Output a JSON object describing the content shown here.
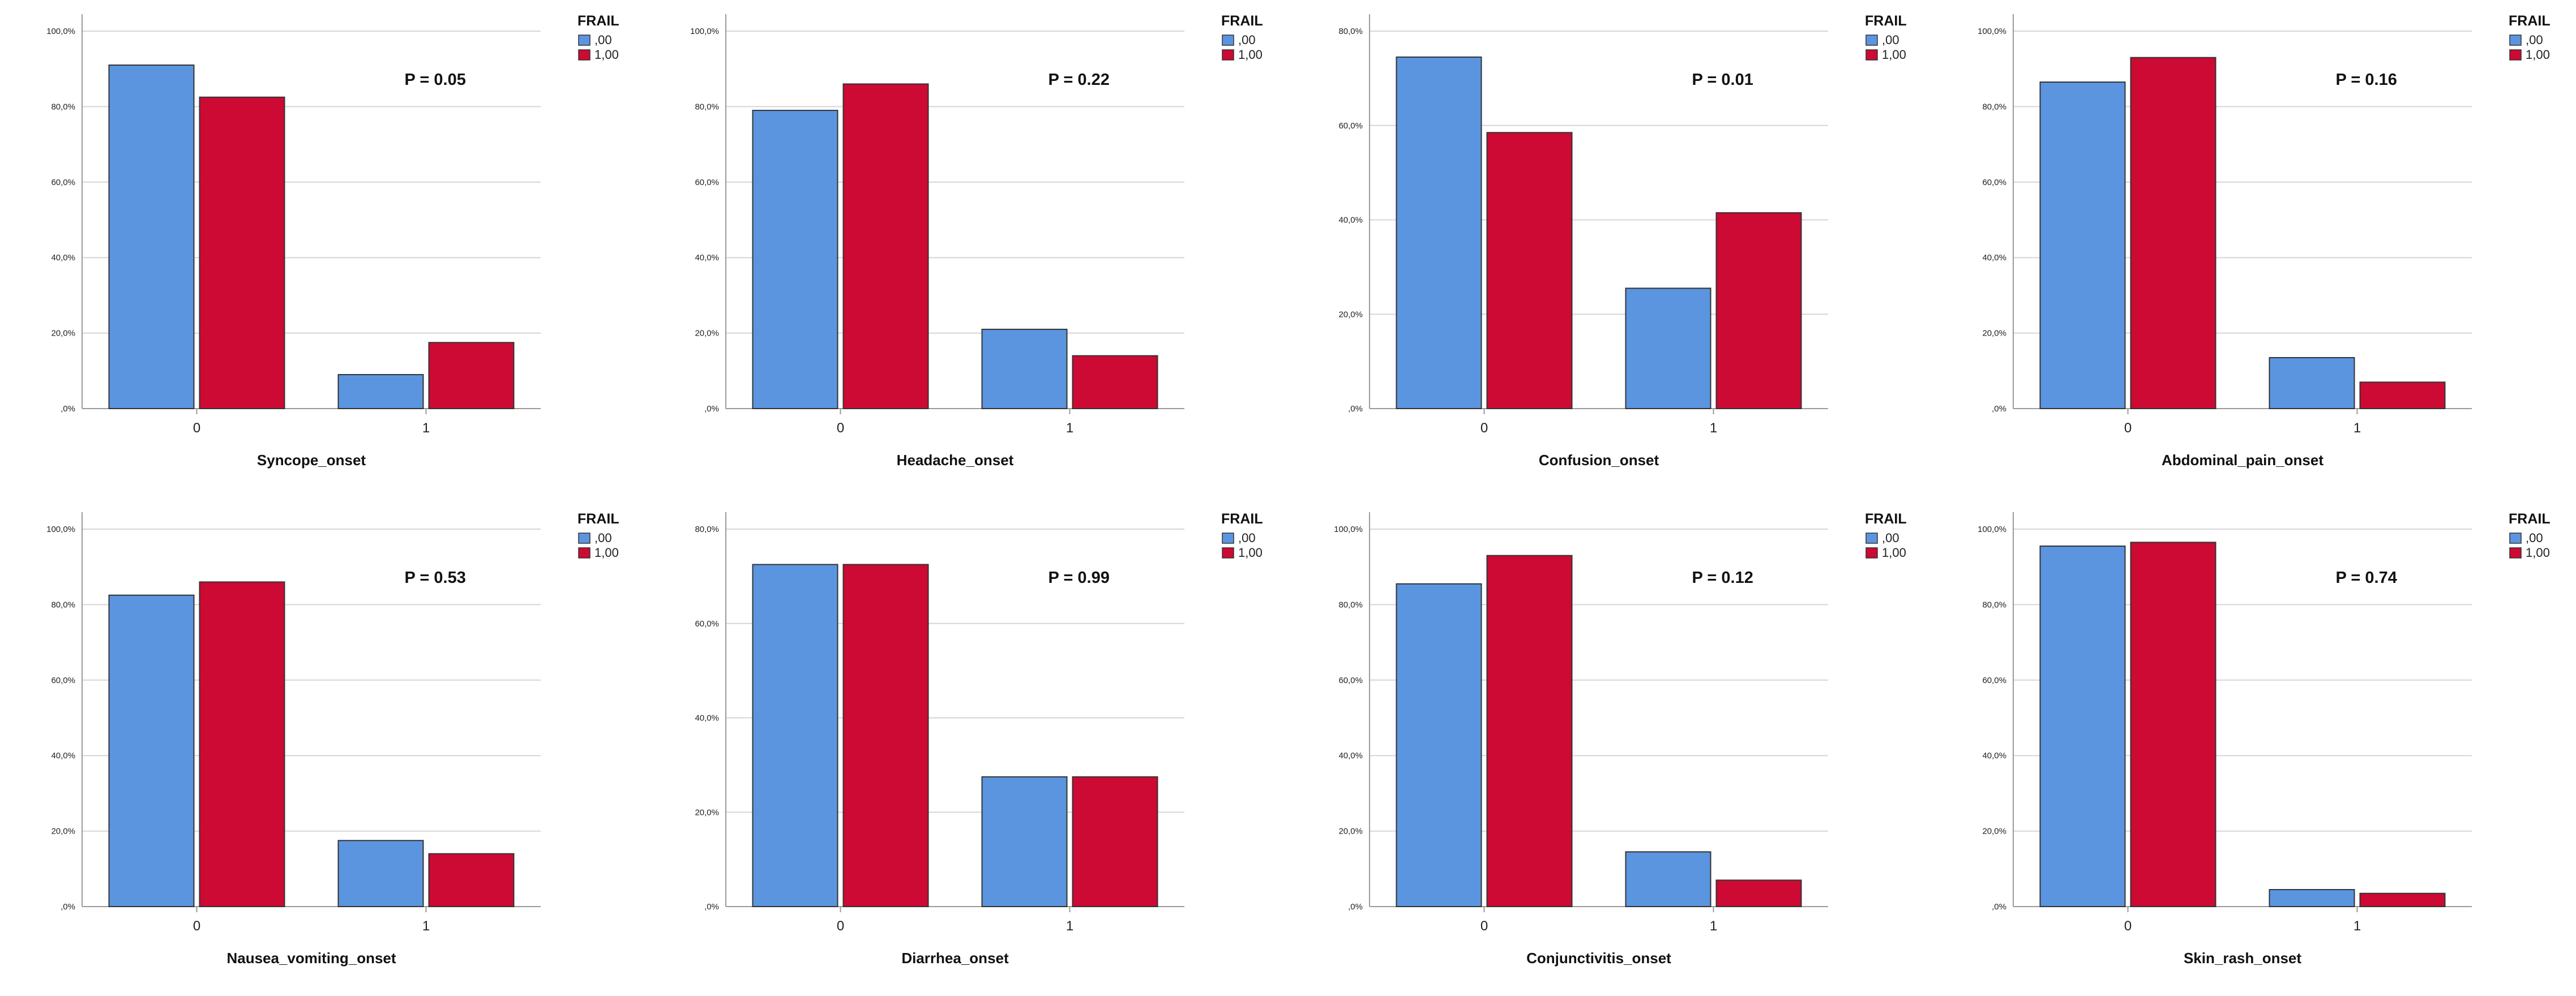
{
  "chart_data": [
    {
      "type": "bar",
      "xlabel": "Syncope_onset",
      "ylabel": "",
      "categories": [
        "0",
        "1"
      ],
      "yticks": [
        ",0%",
        "20,0%",
        "40,0%",
        "60,0%",
        "80,0%",
        "100,0%"
      ],
      "ylim": [
        0,
        100
      ],
      "annotation": "P = 0.05",
      "legend_title": "FRAIL",
      "legend_position": "top-right",
      "colors": [
        "#5b95e0",
        "#cc0a33"
      ],
      "series": [
        {
          "name": ",00",
          "values": [
            91.0,
            9.0
          ]
        },
        {
          "name": "1,00",
          "values": [
            82.5,
            17.5
          ]
        }
      ]
    },
    {
      "type": "bar",
      "xlabel": "Headache_onset",
      "ylabel": "",
      "categories": [
        "0",
        "1"
      ],
      "yticks": [
        ",0%",
        "20,0%",
        "40,0%",
        "60,0%",
        "80,0%",
        "100,0%"
      ],
      "ylim": [
        0,
        100
      ],
      "annotation": "P = 0.22",
      "legend_title": "FRAIL",
      "legend_position": "top-right",
      "colors": [
        "#5b95e0",
        "#cc0a33"
      ],
      "series": [
        {
          "name": ",00",
          "values": [
            79.0,
            21.0
          ]
        },
        {
          "name": "1,00",
          "values": [
            86.0,
            14.0
          ]
        }
      ]
    },
    {
      "type": "bar",
      "xlabel": "Confusion_onset",
      "ylabel": "",
      "categories": [
        "0",
        "1"
      ],
      "yticks": [
        ",0%",
        "20,0%",
        "40,0%",
        "60,0%",
        "80,0%"
      ],
      "ylim": [
        0,
        80
      ],
      "annotation": "P = 0.01",
      "legend_title": "FRAIL",
      "legend_position": "top-right",
      "colors": [
        "#5b95e0",
        "#cc0a33"
      ],
      "series": [
        {
          "name": ",00",
          "values": [
            74.5,
            25.5
          ]
        },
        {
          "name": "1,00",
          "values": [
            58.5,
            41.5
          ]
        }
      ]
    },
    {
      "type": "bar",
      "xlabel": "Abdominal_pain_onset",
      "ylabel": "",
      "categories": [
        "0",
        "1"
      ],
      "yticks": [
        ",0%",
        "20,0%",
        "40,0%",
        "60,0%",
        "80,0%",
        "100,0%"
      ],
      "ylim": [
        0,
        100
      ],
      "annotation": "P = 0.16",
      "legend_title": "FRAIL",
      "legend_position": "top-right",
      "colors": [
        "#5b95e0",
        "#cc0a33"
      ],
      "series": [
        {
          "name": ",00",
          "values": [
            86.5,
            13.5
          ]
        },
        {
          "name": "1,00",
          "values": [
            93.0,
            7.0
          ]
        }
      ]
    },
    {
      "type": "bar",
      "xlabel": "Nausea_vomiting_onset",
      "ylabel": "",
      "categories": [
        "0",
        "1"
      ],
      "yticks": [
        ",0%",
        "20,0%",
        "40,0%",
        "60,0%",
        "80,0%",
        "100,0%"
      ],
      "ylim": [
        0,
        100
      ],
      "annotation": "P = 0.53",
      "legend_title": "FRAIL",
      "legend_position": "top-right",
      "colors": [
        "#5b95e0",
        "#cc0a33"
      ],
      "series": [
        {
          "name": ",00",
          "values": [
            82.5,
            17.5
          ]
        },
        {
          "name": "1,00",
          "values": [
            86.0,
            14.0
          ]
        }
      ]
    },
    {
      "type": "bar",
      "xlabel": "Diarrhea_onset",
      "ylabel": "",
      "categories": [
        "0",
        "1"
      ],
      "yticks": [
        ",0%",
        "20,0%",
        "40,0%",
        "60,0%",
        "80,0%"
      ],
      "ylim": [
        0,
        80
      ],
      "annotation": "P = 0.99",
      "legend_title": "FRAIL",
      "legend_position": "top-right",
      "colors": [
        "#5b95e0",
        "#cc0a33"
      ],
      "series": [
        {
          "name": ",00",
          "values": [
            72.5,
            27.5
          ]
        },
        {
          "name": "1,00",
          "values": [
            72.5,
            27.5
          ]
        }
      ]
    },
    {
      "type": "bar",
      "xlabel": "Conjunctivitis_onset",
      "ylabel": "",
      "categories": [
        "0",
        "1"
      ],
      "yticks": [
        ",0%",
        "20,0%",
        "40,0%",
        "60,0%",
        "80,0%",
        "100,0%"
      ],
      "ylim": [
        0,
        100
      ],
      "annotation": "P = 0.12",
      "legend_title": "FRAIL",
      "legend_position": "top-right",
      "colors": [
        "#5b95e0",
        "#cc0a33"
      ],
      "series": [
        {
          "name": ",00",
          "values": [
            85.5,
            14.5
          ]
        },
        {
          "name": "1,00",
          "values": [
            93.0,
            7.0
          ]
        }
      ]
    },
    {
      "type": "bar",
      "xlabel": "Skin_rash_onset",
      "ylabel": "",
      "categories": [
        "0",
        "1"
      ],
      "yticks": [
        ",0%",
        "20,0%",
        "40,0%",
        "60,0%",
        "80,0%",
        "100,0%"
      ],
      "ylim": [
        0,
        100
      ],
      "annotation": "P = 0.74",
      "legend_title": "FRAIL",
      "legend_position": "top-right",
      "colors": [
        "#5b95e0",
        "#cc0a33"
      ],
      "series": [
        {
          "name": ",00",
          "values": [
            95.5,
            4.5
          ]
        },
        {
          "name": "1,00",
          "values": [
            96.5,
            3.5
          ]
        }
      ]
    }
  ]
}
